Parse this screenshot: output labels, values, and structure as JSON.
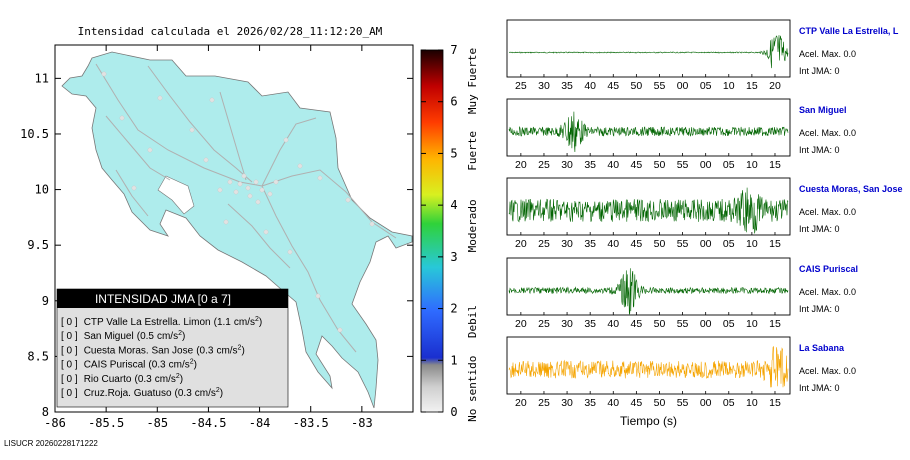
{
  "map": {
    "title": "Intensidad calculada el 2026/02/28_11:12:20_AM",
    "x_ticks": [
      "-86",
      "-85.5",
      "-85",
      "-84.5",
      "-84",
      "-83.5",
      "-83"
    ],
    "y_ticks": [
      "11",
      "10.5",
      "10",
      "9.5",
      "9",
      "8.5",
      "8"
    ],
    "xlim": [
      -86,
      -82.5
    ],
    "ylim": [
      8,
      11.3
    ],
    "land_color": "#aeecec",
    "footer": "LISUCR 20260228171222"
  },
  "colorbar": {
    "ticks": [
      "0",
      "1",
      "2",
      "3",
      "4",
      "5",
      "6",
      "7"
    ],
    "range": [
      0,
      7
    ],
    "labels": [
      "No sentido",
      "Debil",
      "Moderado",
      "Fuerte",
      "Muy Fuerte"
    ]
  },
  "legend": {
    "title": "INTENSIDAD JMA [0 a 7]",
    "rows": [
      {
        "jma": "[ 0 ]",
        "name": "CTP Valle La Estrella. Limon",
        "acc": "1.1",
        "unit": "cm/s",
        "exp": "2"
      },
      {
        "jma": "[ 0 ]",
        "name": "San Miguel",
        "acc": "0.5",
        "unit": "cm/s",
        "exp": "2"
      },
      {
        "jma": "[ 0 ]",
        "name": "Cuesta Moras. San Jose",
        "acc": "0.3",
        "unit": "cm/s",
        "exp": "2"
      },
      {
        "jma": "[ 0 ]",
        "name": "CAIS Puriscal",
        "acc": "0.3",
        "unit": "cm/s",
        "exp": "2"
      },
      {
        "jma": "[ 0 ]",
        "name": "Rio Cuarto",
        "acc": "0.3",
        "unit": "cm/s",
        "exp": "2"
      },
      {
        "jma": "[ 0 ]",
        "name": "Cruz.Roja. Guatuso",
        "acc": "0.3",
        "unit": "cm/s",
        "exp": "2"
      }
    ]
  },
  "chart_data": [
    {
      "type": "line",
      "station": "CTP Valle La Estrella, L",
      "acel_label": "Acel. Max. 0.0",
      "jma_label": "Int JMA: 0",
      "x_ticks": [
        "25",
        "30",
        "35",
        "40",
        "45",
        "50",
        "55",
        "00",
        "05",
        "10",
        "15",
        "20"
      ],
      "line_color": "#006400",
      "amplitude": 0.9,
      "burst_at": 0.96,
      "noise": 0.02
    },
    {
      "type": "line",
      "station": "San Miguel",
      "acel_label": "Acel. Max. 0.0",
      "jma_label": "Int JMA: 0",
      "x_ticks": [
        "20",
        "25",
        "30",
        "35",
        "40",
        "45",
        "50",
        "55",
        "00",
        "05",
        "10",
        "15"
      ],
      "line_color": "#006400",
      "amplitude": 0.8,
      "burst_at": 0.23,
      "noise": 0.18
    },
    {
      "type": "line",
      "station": "Cuesta Moras, San Jose",
      "acel_label": "Acel. Max. 0.0",
      "jma_label": "Int JMA: 0",
      "x_ticks": [
        "20",
        "25",
        "30",
        "35",
        "40",
        "45",
        "50",
        "55",
        "00",
        "05",
        "10",
        "15"
      ],
      "line_color": "#006400",
      "amplitude": 0.9,
      "burst_at": 0.86,
      "noise": 0.45
    },
    {
      "type": "line",
      "station": "CAIS Puriscal",
      "acel_label": "Acel. Max. 0.0",
      "jma_label": "Int JMA: 0",
      "x_ticks": [
        "20",
        "25",
        "30",
        "35",
        "40",
        "45",
        "50",
        "55",
        "00",
        "05",
        "10",
        "15"
      ],
      "line_color": "#006400",
      "amplitude": 0.85,
      "burst_at": 0.43,
      "noise": 0.12
    },
    {
      "type": "line",
      "station": "La Sabana",
      "acel_label": "Acel. Max. 0.0",
      "jma_label": "Int JMA: 0",
      "x_ticks": [
        "20",
        "25",
        "30",
        "35",
        "40",
        "45",
        "50",
        "55",
        "00",
        "05",
        "10",
        "15"
      ],
      "x_label": "Tiempo (s)",
      "line_color": "#f5a400",
      "amplitude": 0.9,
      "burst_at": 0.96,
      "noise": 0.35
    }
  ]
}
